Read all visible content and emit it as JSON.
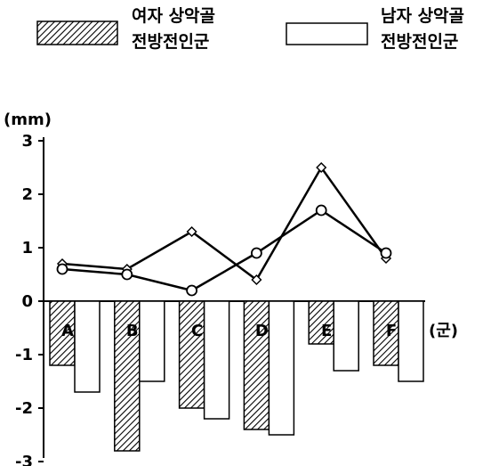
{
  "chart_data": {
    "type": "bar",
    "categories": [
      "A",
      "B",
      "C",
      "D",
      "E",
      "F"
    ],
    "series": [
      {
        "name": "여자 상악골 전방전인군",
        "values": [
          -1.2,
          -2.8,
          -2.0,
          -2.4,
          -0.8,
          -1.2
        ],
        "pattern": "hatched"
      },
      {
        "name": "남자 상악골 전방전인군",
        "values": [
          -1.7,
          -1.5,
          -2.2,
          -2.5,
          -1.3,
          -1.5
        ],
        "pattern": "white"
      }
    ],
    "lines": [
      {
        "marker": "diamond",
        "values": [
          0.7,
          0.6,
          1.3,
          0.4,
          2.5,
          0.8
        ]
      },
      {
        "marker": "circle",
        "values": [
          0.6,
          0.5,
          0.2,
          0.9,
          1.7,
          0.9
        ]
      }
    ],
    "yunit": "(mm)",
    "xunit": "(군)",
    "ylim": [
      -3,
      3
    ],
    "yticks": [
      3,
      2,
      1,
      0,
      -1,
      -2,
      -3
    ],
    "grid": false,
    "legend_position": "top",
    "colors": {
      "bar_edge": "#000000",
      "hatch": "#000000",
      "line": "#000000"
    }
  }
}
